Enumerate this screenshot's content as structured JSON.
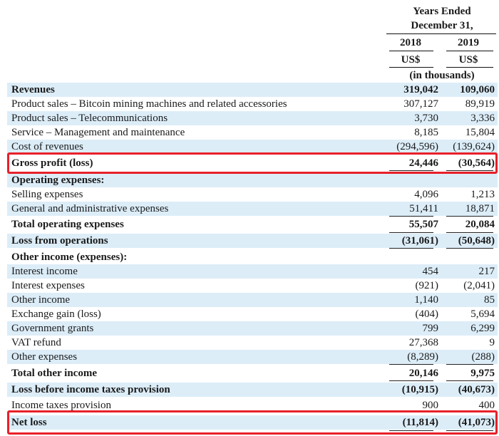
{
  "header": {
    "period_line1": "Years Ended",
    "period_line2": "December 31,",
    "year_2018": "2018",
    "year_2019": "2019",
    "currency_2018": "US$",
    "currency_2019": "US$",
    "units": "(in thousands)"
  },
  "rows": [
    {
      "label": "Revenues",
      "v2018": "319,042",
      "v2019": "109,060",
      "bold": true
    },
    {
      "label": "Product sales – Bitcoin mining machines and related accessories",
      "v2018": "307,127",
      "v2019": "89,919"
    },
    {
      "label": "Product sales – Telecommunications",
      "v2018": "3,730",
      "v2019": "3,336"
    },
    {
      "label": "Service – Management and maintenance",
      "v2018": "8,185",
      "v2019": "15,804"
    },
    {
      "label": "Cost of revenues",
      "v2018": "(294,596)",
      "v2019": "(139,624)"
    },
    {
      "label": "Gross profit (loss)",
      "v2018": "24,446",
      "v2019": "(30,564)",
      "bold": true
    },
    {
      "label": "Operating expenses:",
      "bold": true
    },
    {
      "label": "Selling expenses",
      "v2018": "4,096",
      "v2019": "1,213"
    },
    {
      "label": "General and administrative expenses",
      "v2018": "51,411",
      "v2019": "18,871"
    },
    {
      "label": "Total operating expenses",
      "v2018": "55,507",
      "v2019": "20,084",
      "bold": true
    },
    {
      "label": "Loss from operations",
      "v2018": "(31,061)",
      "v2019": "(50,648)",
      "bold": true
    },
    {
      "label": "Other income (expenses):",
      "bold": true
    },
    {
      "label": "Interest income",
      "v2018": "454",
      "v2019": "217"
    },
    {
      "label": "Interest expenses",
      "v2018": "(921)",
      "v2019": "(2,041)"
    },
    {
      "label": "Other income",
      "v2018": "1,140",
      "v2019": "85"
    },
    {
      "label": "Exchange gain (loss)",
      "v2018": "(404)",
      "v2019": "5,694"
    },
    {
      "label": "Government grants",
      "v2018": "799",
      "v2019": "6,299"
    },
    {
      "label": "VAT refund",
      "v2018": "27,368",
      "v2019": "9"
    },
    {
      "label": "Other expenses",
      "v2018": "(8,289)",
      "v2019": "(288)"
    },
    {
      "label": "Total other income",
      "v2018": "20,146",
      "v2019": "9,975",
      "bold": true
    },
    {
      "label": "Loss before income taxes provision",
      "v2018": "(10,915)",
      "v2019": "(40,673)",
      "bold": true
    },
    {
      "label": "Income taxes provision",
      "v2018": "900",
      "v2019": "400"
    },
    {
      "label": "Net loss",
      "v2018": "(11,814)",
      "v2019": "(41,073)",
      "bold": true
    }
  ],
  "colors": {
    "shade": "#dcedf8",
    "highlight": "#e8202a"
  }
}
